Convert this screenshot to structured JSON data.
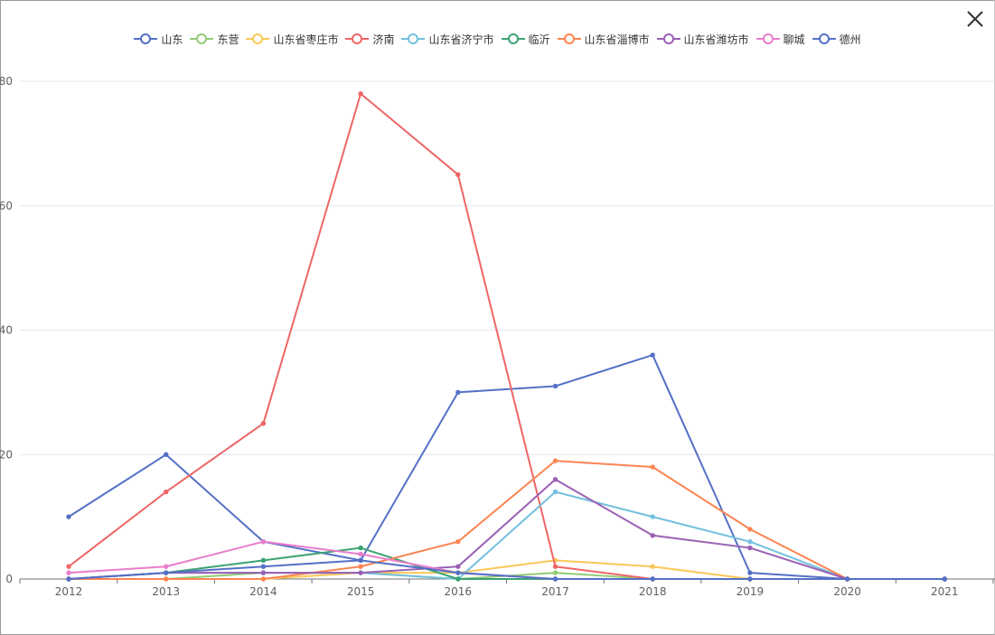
{
  "close_icon": "close-icon",
  "chart_data": {
    "type": "line",
    "title": "",
    "xlabel": "",
    "ylabel": "",
    "grid": true,
    "legend_position": "top-center",
    "x": [
      "2012",
      "2013",
      "2014",
      "2015",
      "2016",
      "2017",
      "2018",
      "2019",
      "2020",
      "2021"
    ],
    "y_ticks": [
      "0",
      "20",
      "40",
      "60",
      "80"
    ],
    "ylim": [
      0,
      80
    ],
    "series": [
      {
        "name": "山东",
        "color": "#5470c6",
        "values": [
          10,
          20,
          6,
          3,
          30,
          31,
          36,
          1,
          0,
          0
        ]
      },
      {
        "name": "东营",
        "color": "#91cc75",
        "values": [
          0,
          0,
          1,
          1,
          0,
          1,
          0,
          0,
          0,
          0
        ]
      },
      {
        "name": "山东省枣庄市",
        "color": "#fac858",
        "values": [
          0,
          0,
          0,
          1,
          1,
          3,
          2,
          0,
          0,
          0
        ]
      },
      {
        "name": "济南",
        "color": "#ee6666",
        "values": [
          2,
          14,
          25,
          78,
          65,
          2,
          0,
          0,
          0,
          0
        ]
      },
      {
        "name": "山东省济宁市",
        "color": "#73c0de",
        "values": [
          0,
          1,
          1,
          1,
          0,
          14,
          10,
          6,
          0,
          0
        ]
      },
      {
        "name": "临沂",
        "color": "#3ba272",
        "values": [
          0,
          1,
          3,
          5,
          0,
          0,
          0,
          0,
          0,
          0
        ]
      },
      {
        "name": "山东省淄博市",
        "color": "#fc8452",
        "values": [
          0,
          0,
          0,
          2,
          6,
          19,
          18,
          8,
          0,
          0
        ]
      },
      {
        "name": "山东省潍坊市",
        "color": "#9a60b4",
        "values": [
          0,
          1,
          1,
          1,
          2,
          16,
          7,
          5,
          0,
          0
        ]
      },
      {
        "name": "聊城",
        "color": "#ea7ccc",
        "values": [
          1,
          2,
          6,
          4,
          1,
          0,
          0,
          0,
          0,
          0
        ]
      },
      {
        "name": "德州",
        "color": "#5470c6",
        "values": [
          0,
          1,
          2,
          3,
          1,
          0,
          0,
          0,
          0,
          0
        ]
      }
    ]
  }
}
